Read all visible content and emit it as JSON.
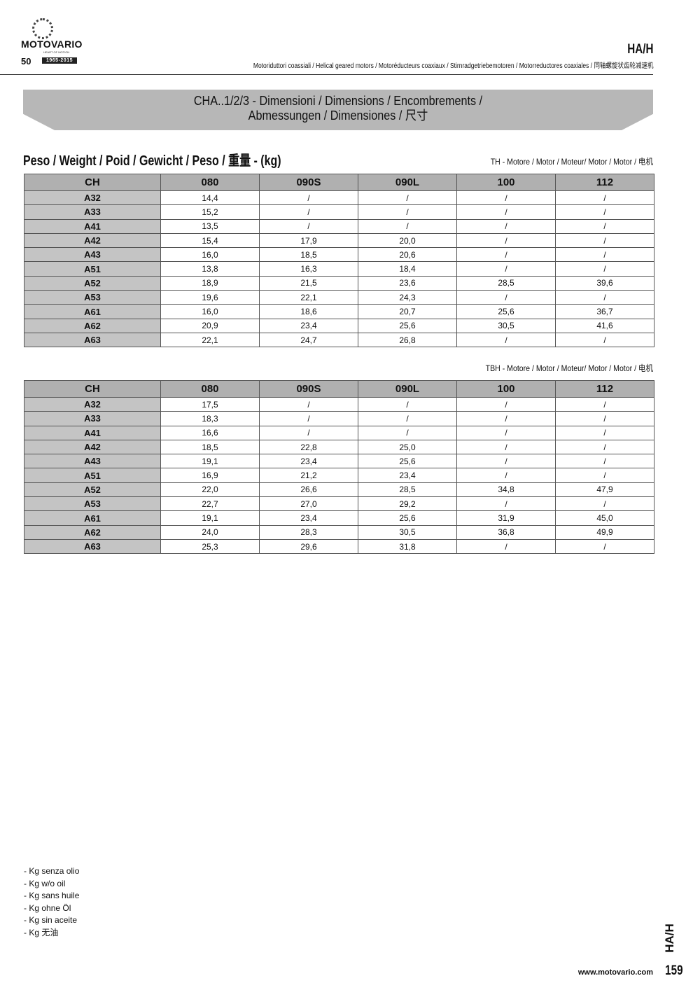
{
  "header": {
    "brand": "MOTOVARIO",
    "brand_tagline": "HEART OF MOTION",
    "anniversary": "50",
    "anniversary_years": "1965-2015",
    "code": "HA/H",
    "subtitle": "Motoriduttori coassiali / Helical geared motors / Motoréducteurs coaxiaux / Stirnradgetriebemotoren / Motorreductores coaxiales / 同轴螺旋状齿轮减速机"
  },
  "banner": {
    "line1": "CHA..1/2/3 - Dimensioni / Dimensions / Encombrements /",
    "line2": "Abmessungen / Dimensiones / 尺寸"
  },
  "weight_title": "Peso / Weight / Poid / Gewicht / Peso / 重量 - (kg)",
  "tables": [
    {
      "label": "TH - Motore / Motor / Moteur/ Motor / Motor / 电机",
      "columns": [
        "CH",
        "080",
        "090S",
        "090L",
        "100",
        "112"
      ],
      "rows": [
        [
          "A32",
          "14,4",
          "/",
          "/",
          "/",
          "/"
        ],
        [
          "A33",
          "15,2",
          "/",
          "/",
          "/",
          "/"
        ],
        [
          "A41",
          "13,5",
          "/",
          "/",
          "/",
          "/"
        ],
        [
          "A42",
          "15,4",
          "17,9",
          "20,0",
          "/",
          "/"
        ],
        [
          "A43",
          "16,0",
          "18,5",
          "20,6",
          "/",
          "/"
        ],
        [
          "A51",
          "13,8",
          "16,3",
          "18,4",
          "/",
          "/"
        ],
        [
          "A52",
          "18,9",
          "21,5",
          "23,6",
          "28,5",
          "39,6"
        ],
        [
          "A53",
          "19,6",
          "22,1",
          "24,3",
          "/",
          "/"
        ],
        [
          "A61",
          "16,0",
          "18,6",
          "20,7",
          "25,6",
          "36,7"
        ],
        [
          "A62",
          "20,9",
          "23,4",
          "25,6",
          "30,5",
          "41,6"
        ],
        [
          "A63",
          "22,1",
          "24,7",
          "26,8",
          "/",
          "/"
        ]
      ]
    },
    {
      "label": "TBH - Motore / Motor / Moteur/ Motor / Motor / 电机",
      "columns": [
        "CH",
        "080",
        "090S",
        "090L",
        "100",
        "112"
      ],
      "rows": [
        [
          "A32",
          "17,5",
          "/",
          "/",
          "/",
          "/"
        ],
        [
          "A33",
          "18,3",
          "/",
          "/",
          "/",
          "/"
        ],
        [
          "A41",
          "16,6",
          "/",
          "/",
          "/",
          "/"
        ],
        [
          "A42",
          "18,5",
          "22,8",
          "25,0",
          "/",
          "/"
        ],
        [
          "A43",
          "19,1",
          "23,4",
          "25,6",
          "/",
          "/"
        ],
        [
          "A51",
          "16,9",
          "21,2",
          "23,4",
          "/",
          "/"
        ],
        [
          "A52",
          "22,0",
          "26,6",
          "28,5",
          "34,8",
          "47,9"
        ],
        [
          "A53",
          "22,7",
          "27,0",
          "29,2",
          "/",
          "/"
        ],
        [
          "A61",
          "19,1",
          "23,4",
          "25,6",
          "31,9",
          "45,0"
        ],
        [
          "A62",
          "24,0",
          "28,3",
          "30,5",
          "36,8",
          "49,9"
        ],
        [
          "A63",
          "25,3",
          "29,6",
          "31,8",
          "/",
          "/"
        ]
      ]
    }
  ],
  "notes": [
    "- Kg senza olio",
    "- Kg w/o oil",
    "- Kg sans huile",
    "- Kg ohne Öl",
    "- Kg sin aceite",
    "- Kg 无油"
  ],
  "footer": {
    "website": "www.motovario.com",
    "page_number": "159",
    "side_code": "HA/H"
  }
}
